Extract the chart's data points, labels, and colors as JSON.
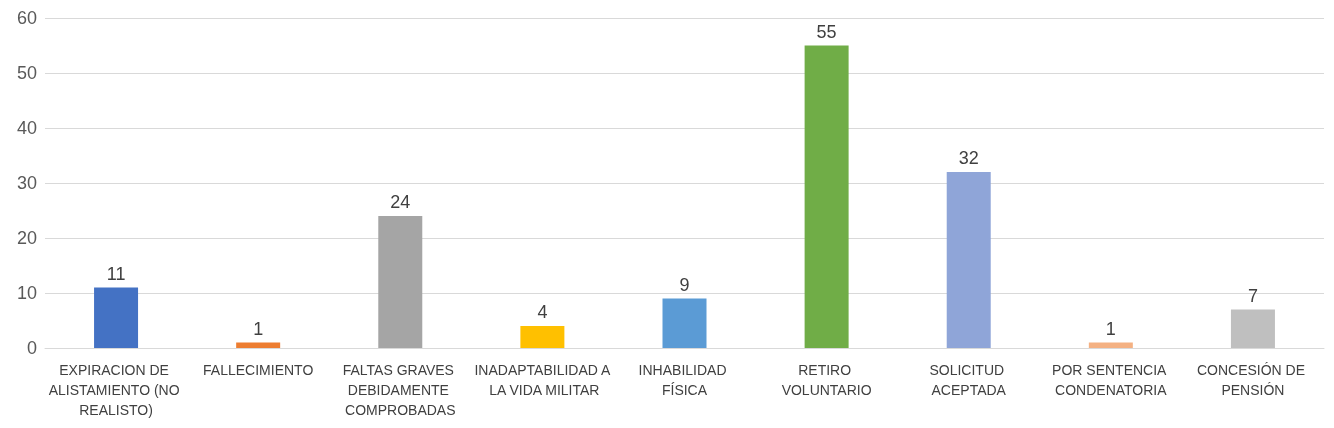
{
  "chart_data": {
    "type": "bar",
    "categories": [
      "EXPIRACION DE ALISTAMIENTO (NO REALISTO)",
      "FALLECIMIENTO",
      "FALTAS GRAVES DEBIDAMENTE COMPROBADAS",
      "INADAPTABILIDAD A LA VIDA MILITAR",
      "INHABILIDAD FÍSICA",
      "RETIRO VOLUNTARIO",
      "SOLICITUD ACEPTADA",
      "POR SENTENCIA CONDENATORIA",
      "CONCESIÓN DE PENSIÓN"
    ],
    "values": [
      11,
      1,
      24,
      4,
      9,
      55,
      32,
      1,
      7
    ],
    "colors": [
      "#4472c4",
      "#ed7d31",
      "#a5a5a5",
      "#ffc000",
      "#5b9bd5",
      "#70ad47",
      "#8fa5d8",
      "#f4b183",
      "#bfbfbf"
    ],
    "ylim": [
      0,
      60
    ],
    "yticks": [
      0,
      10,
      20,
      30,
      40,
      50,
      60
    ],
    "grid": "y",
    "data_labels": true
  }
}
